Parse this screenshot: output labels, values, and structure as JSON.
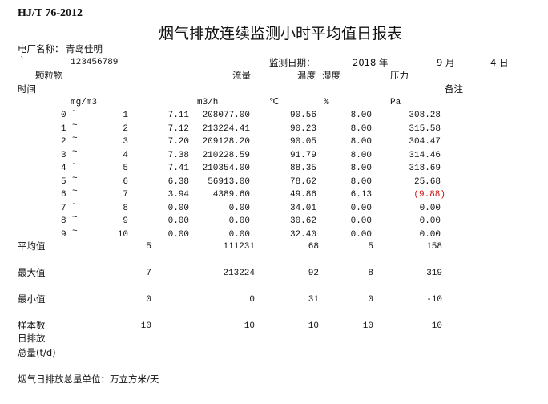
{
  "header": {
    "standard_code": "HJ/T 76-2012",
    "title": "烟气排放连续监测小时平均值日报表",
    "plant_label": "电厂名称：",
    "plant_name": "青岛佳明",
    "tick_mark": "`",
    "id_number": "123456789",
    "date_label": "监测日期：",
    "year": "2018 年",
    "month": "9 月",
    "day": "4 日"
  },
  "columns": {
    "particulate": "颗粒物",
    "flow": "流量",
    "temperature": "温度",
    "humidity": "湿度",
    "pressure": "压力",
    "time": "时间",
    "remarks": "备注",
    "units": {
      "particulate": "mg/m3",
      "flow": "m3/h",
      "temperature": "℃",
      "humidity": "%",
      "pressure": "Pa"
    }
  },
  "rows": [
    {
      "from": "0",
      "sep": "~",
      "to": "1",
      "particulate": "7.11",
      "flow": "208077.00",
      "temperature": "90.56",
      "humidity": "8.00",
      "pressure": "308.28"
    },
    {
      "from": "1",
      "sep": "~",
      "to": "2",
      "particulate": "7.12",
      "flow": "213224.41",
      "temperature": "90.23",
      "humidity": "8.00",
      "pressure": "315.58"
    },
    {
      "from": "2",
      "sep": "~",
      "to": "3",
      "particulate": "7.20",
      "flow": "209128.20",
      "temperature": "90.05",
      "humidity": "8.00",
      "pressure": "304.47"
    },
    {
      "from": "3",
      "sep": "~",
      "to": "4",
      "particulate": "7.38",
      "flow": "210228.59",
      "temperature": "91.79",
      "humidity": "8.00",
      "pressure": "314.46"
    },
    {
      "from": "4",
      "sep": "~",
      "to": "5",
      "particulate": "7.41",
      "flow": "210354.00",
      "temperature": "88.35",
      "humidity": "8.00",
      "pressure": "318.69"
    },
    {
      "from": "5",
      "sep": "~",
      "to": "6",
      "particulate": "6.38",
      "flow": "56913.00",
      "temperature": "78.62",
      "humidity": "8.00",
      "pressure": "25.68"
    },
    {
      "from": "6",
      "sep": "~",
      "to": "7",
      "particulate": "3.94",
      "flow": "4389.60",
      "temperature": "49.86",
      "humidity": "6.13",
      "pressure": "(9.88)",
      "pressure_negative": true
    },
    {
      "from": "7",
      "sep": "~",
      "to": "8",
      "particulate": "0.00",
      "flow": "0.00",
      "temperature": "34.01",
      "humidity": "0.00",
      "pressure": "0.00"
    },
    {
      "from": "8",
      "sep": "~",
      "to": "9",
      "particulate": "0.00",
      "flow": "0.00",
      "temperature": "30.62",
      "humidity": "0.00",
      "pressure": "0.00"
    },
    {
      "from": "9",
      "sep": "~",
      "to": "10",
      "particulate": "0.00",
      "flow": "0.00",
      "temperature": "32.40",
      "humidity": "0.00",
      "pressure": "0.00"
    }
  ],
  "summary": [
    {
      "label": "平均值",
      "particulate": "5",
      "flow": "111231",
      "temperature": "68",
      "humidity": "5",
      "pressure": "158"
    },
    {
      "label": "最大值",
      "particulate": "7",
      "flow": "213224",
      "temperature": "92",
      "humidity": "8",
      "pressure": "319"
    },
    {
      "label": "最小值",
      "particulate": "0",
      "flow": "0",
      "temperature": "31",
      "humidity": "0",
      "pressure": "-10"
    },
    {
      "label": "样本数",
      "particulate": "10",
      "flow": "10",
      "temperature": "10",
      "humidity": "10",
      "pressure": "10"
    }
  ],
  "daily_emission_label_1": "日排放",
  "daily_emission_label_2": "总量(t/d)",
  "footer_note": "烟气日排放总量单位：万立方米/天",
  "colors": {
    "negative": "#d01010",
    "text": "#111111"
  }
}
